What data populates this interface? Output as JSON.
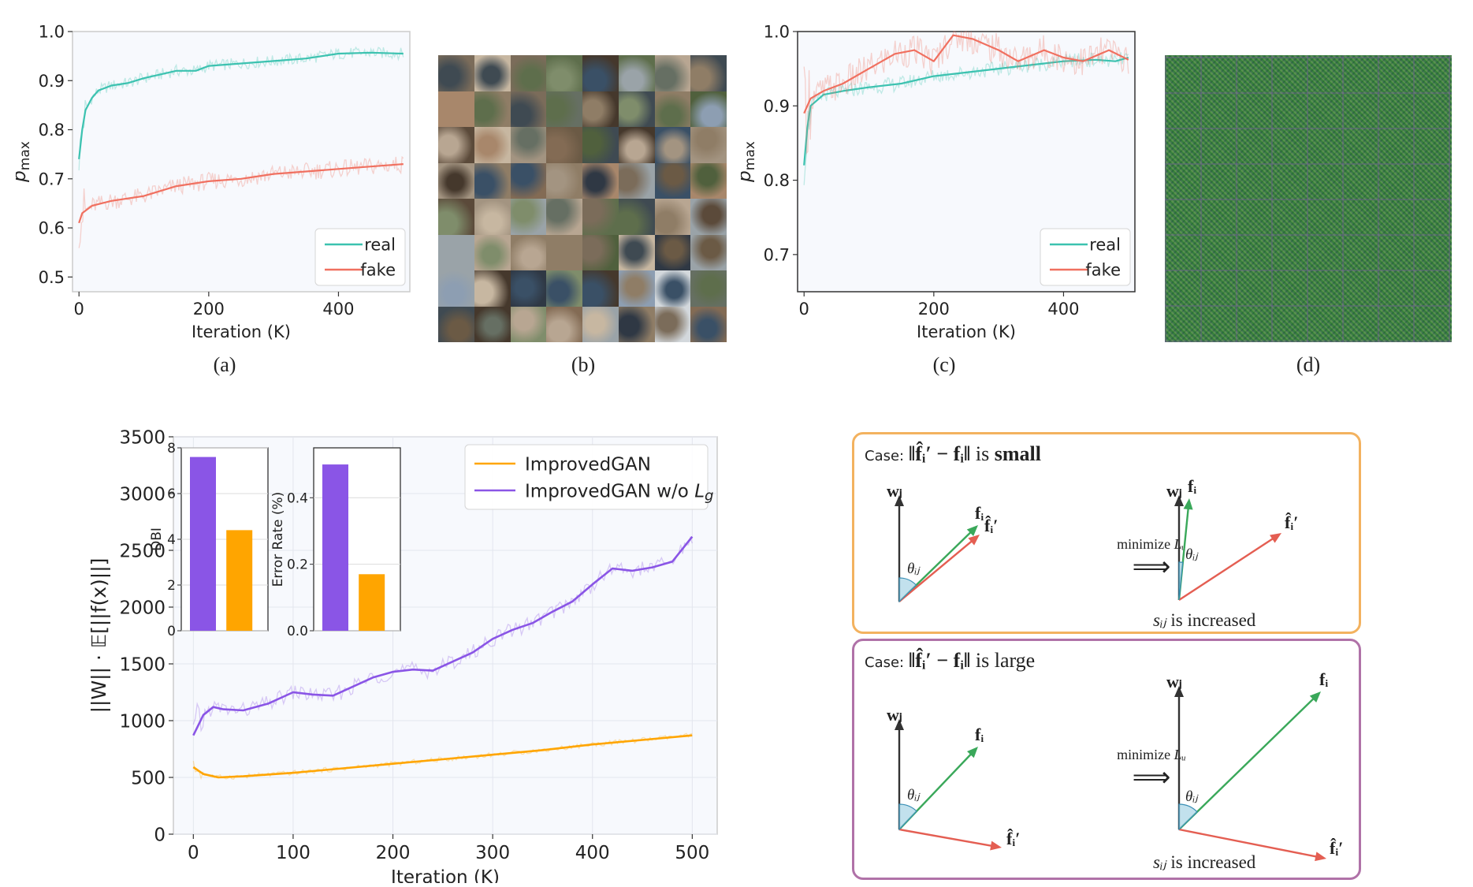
{
  "colors": {
    "real": "#3cc2b0",
    "fake": "#f07060",
    "improved": "#ffa500",
    "without": "#8a55e6",
    "case_small_border": "#f3b25f",
    "case_large_border": "#b072a8",
    "vec_gray": "#333333",
    "vec_green": "#3aa85a",
    "vec_red": "#e45e52",
    "angle_fill": "#a8d4e6"
  },
  "captions": {
    "a": "(a)",
    "b": "(b)",
    "c": "(c)",
    "d": "(d)"
  },
  "chart_data": [
    {
      "id": "a",
      "type": "line",
      "xlabel": "Iteration (K)",
      "ylabel": "p",
      "ylabel_sub": "max",
      "xlim": [
        -10,
        510
      ],
      "ylim": [
        0.47,
        1.0
      ],
      "xticks": [
        0,
        200,
        400
      ],
      "yticks": [
        0.5,
        0.6,
        0.7,
        0.8,
        0.9,
        1.0
      ],
      "grid": false,
      "legend": "bottom-right",
      "series": [
        {
          "name": "real",
          "color": "#3cc2b0",
          "x": [
            0,
            5,
            10,
            20,
            30,
            50,
            75,
            100,
            150,
            180,
            200,
            250,
            300,
            350,
            400,
            450,
            500
          ],
          "y": [
            0.74,
            0.8,
            0.84,
            0.865,
            0.88,
            0.89,
            0.895,
            0.905,
            0.92,
            0.92,
            0.93,
            0.935,
            0.94,
            0.945,
            0.955,
            0.957,
            0.955
          ]
        },
        {
          "name": "fake",
          "color": "#f07060",
          "x": [
            0,
            5,
            20,
            50,
            100,
            150,
            200,
            250,
            300,
            350,
            400,
            450,
            500
          ],
          "y": [
            0.61,
            0.63,
            0.645,
            0.655,
            0.665,
            0.685,
            0.695,
            0.7,
            0.71,
            0.715,
            0.72,
            0.725,
            0.73
          ]
        }
      ]
    },
    {
      "id": "c",
      "type": "line",
      "xlabel": "Iteration (K)",
      "ylabel": "p",
      "ylabel_sub": "max",
      "xlim": [
        -10,
        510
      ],
      "ylim": [
        0.65,
        1.0
      ],
      "xticks": [
        0,
        200,
        400
      ],
      "yticks": [
        0.7,
        0.8,
        0.9,
        1.0
      ],
      "grid": false,
      "legend": "bottom-right",
      "series": [
        {
          "name": "real",
          "color": "#3cc2b0",
          "x": [
            0,
            5,
            10,
            30,
            60,
            100,
            150,
            200,
            250,
            300,
            350,
            400,
            450,
            480,
            500
          ],
          "y": [
            0.82,
            0.87,
            0.9,
            0.915,
            0.92,
            0.925,
            0.93,
            0.94,
            0.945,
            0.95,
            0.955,
            0.96,
            0.962,
            0.96,
            0.965
          ]
        },
        {
          "name": "fake",
          "color": "#f07060",
          "x": [
            0,
            10,
            30,
            60,
            100,
            140,
            170,
            200,
            230,
            260,
            300,
            330,
            370,
            400,
            430,
            470,
            500
          ],
          "y": [
            0.89,
            0.91,
            0.92,
            0.93,
            0.95,
            0.97,
            0.975,
            0.96,
            0.995,
            0.99,
            0.975,
            0.96,
            0.975,
            0.965,
            0.96,
            0.975,
            0.962
          ]
        }
      ]
    },
    {
      "id": "main",
      "type": "line",
      "xlabel": "Iteration (K)",
      "ylabel": "||W|| · 𝔼[||f(x)||]",
      "xlim": [
        -20,
        525
      ],
      "ylim": [
        0,
        3500
      ],
      "xticks": [
        0,
        100,
        200,
        300,
        400,
        500
      ],
      "yticks": [
        0,
        500,
        1000,
        1500,
        2000,
        2500,
        3000,
        3500
      ],
      "grid": true,
      "legend": "top-right",
      "series": [
        {
          "name": "ImprovedGAN",
          "color": "#ffa500",
          "x": [
            0,
            10,
            25,
            50,
            100,
            150,
            200,
            250,
            300,
            350,
            400,
            450,
            500
          ],
          "y": [
            590,
            530,
            500,
            510,
            540,
            580,
            620,
            660,
            700,
            740,
            790,
            830,
            870
          ]
        },
        {
          "name": "ImprovedGAN w/o ",
          "name_sub": "L",
          "name_subscript": "g",
          "color": "#8a55e6",
          "x": [
            0,
            10,
            20,
            30,
            50,
            75,
            100,
            120,
            140,
            160,
            180,
            200,
            220,
            240,
            260,
            280,
            300,
            320,
            340,
            360,
            380,
            400,
            420,
            440,
            460,
            480,
            500
          ],
          "y": [
            870,
            1050,
            1120,
            1100,
            1090,
            1150,
            1250,
            1230,
            1220,
            1300,
            1380,
            1430,
            1450,
            1440,
            1520,
            1600,
            1720,
            1800,
            1860,
            1960,
            2050,
            2200,
            2340,
            2320,
            2350,
            2400,
            2620
          ]
        }
      ]
    },
    {
      "id": "inset-dbi",
      "type": "bar",
      "ylabel": "DBI",
      "ylim": [
        0,
        8
      ],
      "yticks": [
        0,
        2,
        4,
        6,
        8
      ],
      "grid": true,
      "values": [
        7.6,
        4.4
      ],
      "colors": [
        "#8a55e6",
        "#ffa500"
      ]
    },
    {
      "id": "inset-error",
      "type": "bar",
      "ylabel": "Error Rate (%)",
      "ylim": [
        0,
        0.55
      ],
      "yticks": [
        0.0,
        0.2,
        0.4
      ],
      "grid": true,
      "values": [
        0.5,
        0.17
      ],
      "colors": [
        "#8a55e6",
        "#ffa500"
      ]
    }
  ],
  "diagram": {
    "case_small": {
      "prefix": "Case:",
      "norm_text": "‖f̂ᵢ′ − fᵢ‖",
      "is_text": "is",
      "state": "small",
      "w_label": "wⱼ",
      "f_label": "fᵢ",
      "fhat_label": "f̂ᵢ′",
      "theta_label": "θᵢⱼ",
      "min_label": "minimize",
      "min_var": "Lᵤ",
      "arrow": "⟹",
      "result_var": "sᵢⱼ",
      "result_text": "is increased"
    },
    "case_large": {
      "prefix": "Case:",
      "norm_text": "‖f̂ᵢ′ − fᵢ‖",
      "is_text": "is",
      "state": "large",
      "w_label": "wⱼ",
      "f_label": "fᵢ",
      "fhat_label": "f̂ᵢ′",
      "theta_label": "θᵢⱼ",
      "min_label": "minimize",
      "min_var": "Lᵤ",
      "arrow": "⟹",
      "result_var": "sᵢⱼ",
      "result_text": "is increased"
    }
  }
}
